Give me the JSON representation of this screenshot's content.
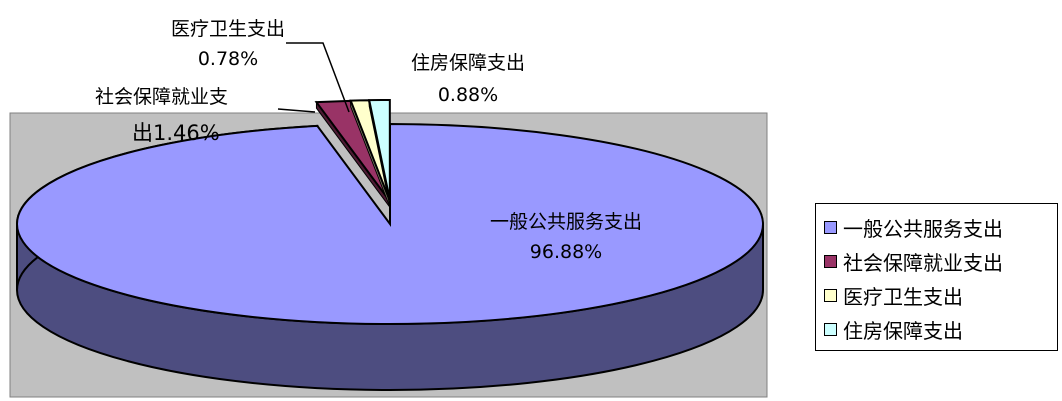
{
  "chart_data": {
    "type": "pie",
    "style": "3d-exploded",
    "slices": [
      {
        "name": "一般公共服务支出",
        "value": 96.88,
        "color": "#9999ff",
        "side_color": "#4d4d80"
      },
      {
        "name": "社会保障就业支出",
        "value": 1.46,
        "color": "#993366",
        "side_color": "#4d1a33"
      },
      {
        "name": "医疗卫生支出",
        "value": 0.78,
        "color": "#ffffcc",
        "side_color": "#808066"
      },
      {
        "name": "住房保障支出",
        "value": 0.88,
        "color": "#ccffff",
        "side_color": "#668080"
      }
    ],
    "data_labels": [
      {
        "lines": [
          "一般公共服务支出",
          "96.88%"
        ]
      },
      {
        "lines": [
          "社会保障就业支",
          "出1.46%"
        ]
      },
      {
        "lines": [
          "医疗卫生支出",
          "0.78%"
        ]
      },
      {
        "lines": [
          "住房保障支出",
          "0.88%"
        ]
      }
    ],
    "plot_area_color": "#c0c0c0",
    "legend_position": "right"
  }
}
